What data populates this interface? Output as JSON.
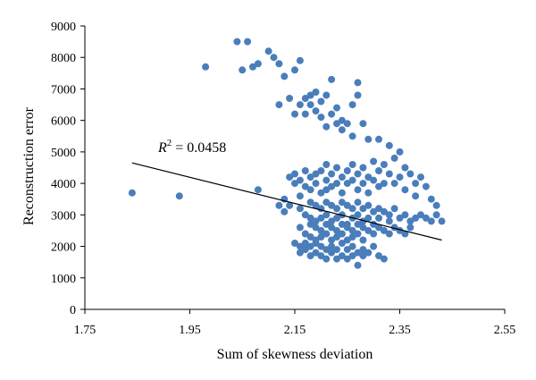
{
  "chart_data": {
    "type": "scatter",
    "title": "",
    "xlabel": "Sum of skewness deviation",
    "ylabel": "Reconstruction error",
    "xlim": [
      1.75,
      2.55
    ],
    "ylim": [
      0,
      9000
    ],
    "xticks": [
      1.75,
      1.95,
      2.15,
      2.35,
      2.55
    ],
    "xtick_labels": [
      "1.75",
      "1.95",
      "2.15",
      "2.35",
      "2.55"
    ],
    "yticks": [
      0,
      1000,
      2000,
      3000,
      4000,
      5000,
      6000,
      7000,
      8000,
      9000
    ],
    "ytick_labels": [
      "0",
      "1000",
      "2000",
      "3000",
      "4000",
      "5000",
      "6000",
      "7000",
      "8000",
      "9000"
    ],
    "grid": false,
    "point_color": "#4a7ebb",
    "line_color": "#000000",
    "annotation": {
      "lhs": "R",
      "exp": "2",
      "rhs": " = 0.0458"
    },
    "trendline": {
      "x": [
        1.84,
        2.43
      ],
      "y": [
        4650,
        2200
      ]
    },
    "points": [
      [
        1.84,
        3700
      ],
      [
        1.93,
        3600
      ],
      [
        1.98,
        7700
      ],
      [
        2.04,
        8500
      ],
      [
        2.05,
        7600
      ],
      [
        2.06,
        8500
      ],
      [
        2.07,
        7700
      ],
      [
        2.08,
        7800
      ],
      [
        2.08,
        3800
      ],
      [
        2.1,
        8200
      ],
      [
        2.11,
        8000
      ],
      [
        2.12,
        6500
      ],
      [
        2.12,
        7800
      ],
      [
        2.13,
        7400
      ],
      [
        2.13,
        3500
      ],
      [
        2.14,
        6700
      ],
      [
        2.14,
        3300
      ],
      [
        2.15,
        6200
      ],
      [
        2.15,
        7600
      ],
      [
        2.15,
        4000
      ],
      [
        2.16,
        7900
      ],
      [
        2.16,
        6500
      ],
      [
        2.17,
        6700
      ],
      [
        2.17,
        6200
      ],
      [
        2.18,
        6800
      ],
      [
        2.18,
        6500
      ],
      [
        2.19,
        6900
      ],
      [
        2.19,
        6300
      ],
      [
        2.2,
        6600
      ],
      [
        2.2,
        6100
      ],
      [
        2.21,
        6800
      ],
      [
        2.21,
        5800
      ],
      [
        2.22,
        7300
      ],
      [
        2.22,
        6200
      ],
      [
        2.23,
        6400
      ],
      [
        2.23,
        5900
      ],
      [
        2.24,
        6000
      ],
      [
        2.24,
        5700
      ],
      [
        2.25,
        5900
      ],
      [
        2.26,
        6500
      ],
      [
        2.26,
        5500
      ],
      [
        2.27,
        7200
      ],
      [
        2.27,
        6800
      ],
      [
        2.28,
        5900
      ],
      [
        2.29,
        5400
      ],
      [
        2.31,
        5400
      ],
      [
        2.33,
        5200
      ],
      [
        2.35,
        5000
      ],
      [
        2.12,
        3300
      ],
      [
        2.13,
        3100
      ],
      [
        2.14,
        4200
      ],
      [
        2.15,
        4300
      ],
      [
        2.16,
        4100
      ],
      [
        2.16,
        3600
      ],
      [
        2.17,
        4400
      ],
      [
        2.17,
        3900
      ],
      [
        2.18,
        4200
      ],
      [
        2.18,
        3800
      ],
      [
        2.19,
        4300
      ],
      [
        2.19,
        4000
      ],
      [
        2.2,
        4400
      ],
      [
        2.2,
        3700
      ],
      [
        2.21,
        4600
      ],
      [
        2.21,
        4100
      ],
      [
        2.21,
        3800
      ],
      [
        2.22,
        4300
      ],
      [
        2.22,
        3900
      ],
      [
        2.23,
        4500
      ],
      [
        2.23,
        4000
      ],
      [
        2.24,
        4200
      ],
      [
        2.24,
        3700
      ],
      [
        2.25,
        4400
      ],
      [
        2.25,
        4000
      ],
      [
        2.26,
        4600
      ],
      [
        2.26,
        4100
      ],
      [
        2.27,
        4300
      ],
      [
        2.27,
        3800
      ],
      [
        2.28,
        4500
      ],
      [
        2.28,
        4000
      ],
      [
        2.29,
        4200
      ],
      [
        2.29,
        3700
      ],
      [
        2.3,
        4700
      ],
      [
        2.3,
        4100
      ],
      [
        2.31,
        4400
      ],
      [
        2.31,
        3900
      ],
      [
        2.32,
        4600
      ],
      [
        2.32,
        4000
      ],
      [
        2.33,
        4300
      ],
      [
        2.34,
        4800
      ],
      [
        2.34,
        4000
      ],
      [
        2.35,
        4200
      ],
      [
        2.36,
        4500
      ],
      [
        2.36,
        3800
      ],
      [
        2.37,
        4300
      ],
      [
        2.38,
        4000
      ],
      [
        2.38,
        3600
      ],
      [
        2.39,
        4200
      ],
      [
        2.4,
        3900
      ],
      [
        2.41,
        3500
      ],
      [
        2.42,
        3300
      ],
      [
        2.16,
        3200
      ],
      [
        2.17,
        3000
      ],
      [
        2.18,
        3400
      ],
      [
        2.18,
        2900
      ],
      [
        2.19,
        3300
      ],
      [
        2.19,
        2800
      ],
      [
        2.2,
        3200
      ],
      [
        2.2,
        2900
      ],
      [
        2.21,
        3400
      ],
      [
        2.21,
        3000
      ],
      [
        2.22,
        3300
      ],
      [
        2.22,
        2800
      ],
      [
        2.23,
        3200
      ],
      [
        2.23,
        2900
      ],
      [
        2.24,
        3400
      ],
      [
        2.24,
        3000
      ],
      [
        2.25,
        3300
      ],
      [
        2.25,
        2700
      ],
      [
        2.26,
        3200
      ],
      [
        2.26,
        2900
      ],
      [
        2.27,
        3400
      ],
      [
        2.27,
        3000
      ],
      [
        2.28,
        3200
      ],
      [
        2.28,
        2800
      ],
      [
        2.29,
        3300
      ],
      [
        2.29,
        2900
      ],
      [
        2.3,
        3100
      ],
      [
        2.3,
        2700
      ],
      [
        2.31,
        3200
      ],
      [
        2.31,
        2900
      ],
      [
        2.32,
        3100
      ],
      [
        2.33,
        3000
      ],
      [
        2.33,
        2800
      ],
      [
        2.34,
        3200
      ],
      [
        2.35,
        2900
      ],
      [
        2.36,
        3000
      ],
      [
        2.37,
        2800
      ],
      [
        2.38,
        2900
      ],
      [
        2.39,
        3000
      ],
      [
        2.4,
        2900
      ],
      [
        2.41,
        2800
      ],
      [
        2.42,
        3000
      ],
      [
        2.43,
        2800
      ],
      [
        2.16,
        2600
      ],
      [
        2.17,
        2400
      ],
      [
        2.18,
        2700
      ],
      [
        2.18,
        2300
      ],
      [
        2.19,
        2600
      ],
      [
        2.19,
        2200
      ],
      [
        2.2,
        2500
      ],
      [
        2.2,
        2300
      ],
      [
        2.21,
        2700
      ],
      [
        2.21,
        2400
      ],
      [
        2.22,
        2600
      ],
      [
        2.22,
        2200
      ],
      [
        2.23,
        2500
      ],
      [
        2.23,
        2300
      ],
      [
        2.24,
        2700
      ],
      [
        2.24,
        2400
      ],
      [
        2.25,
        2600
      ],
      [
        2.25,
        2200
      ],
      [
        2.26,
        2500
      ],
      [
        2.26,
        2300
      ],
      [
        2.27,
        2700
      ],
      [
        2.27,
        2400
      ],
      [
        2.28,
        2600
      ],
      [
        2.28,
        2200
      ],
      [
        2.29,
        2500
      ],
      [
        2.3,
        2400
      ],
      [
        2.31,
        2600
      ],
      [
        2.32,
        2500
      ],
      [
        2.33,
        2400
      ],
      [
        2.34,
        2600
      ],
      [
        2.35,
        2500
      ],
      [
        2.36,
        2400
      ],
      [
        2.37,
        2600
      ],
      [
        2.15,
        2100
      ],
      [
        2.16,
        2000
      ],
      [
        2.16,
        1800
      ],
      [
        2.17,
        2100
      ],
      [
        2.17,
        1900
      ],
      [
        2.18,
        2000
      ],
      [
        2.18,
        1700
      ],
      [
        2.19,
        2100
      ],
      [
        2.19,
        1800
      ],
      [
        2.2,
        2000
      ],
      [
        2.2,
        1700
      ],
      [
        2.21,
        1900
      ],
      [
        2.21,
        1600
      ],
      [
        2.22,
        2000
      ],
      [
        2.22,
        1800
      ],
      [
        2.23,
        1900
      ],
      [
        2.23,
        1600
      ],
      [
        2.24,
        2100
      ],
      [
        2.24,
        1700
      ],
      [
        2.25,
        1900
      ],
      [
        2.25,
        1600
      ],
      [
        2.26,
        2000
      ],
      [
        2.26,
        1700
      ],
      [
        2.27,
        1800
      ],
      [
        2.27,
        1400
      ],
      [
        2.28,
        1900
      ],
      [
        2.28,
        1700
      ],
      [
        2.29,
        1800
      ],
      [
        2.3,
        2000
      ],
      [
        2.31,
        1700
      ],
      [
        2.32,
        1600
      ]
    ]
  }
}
